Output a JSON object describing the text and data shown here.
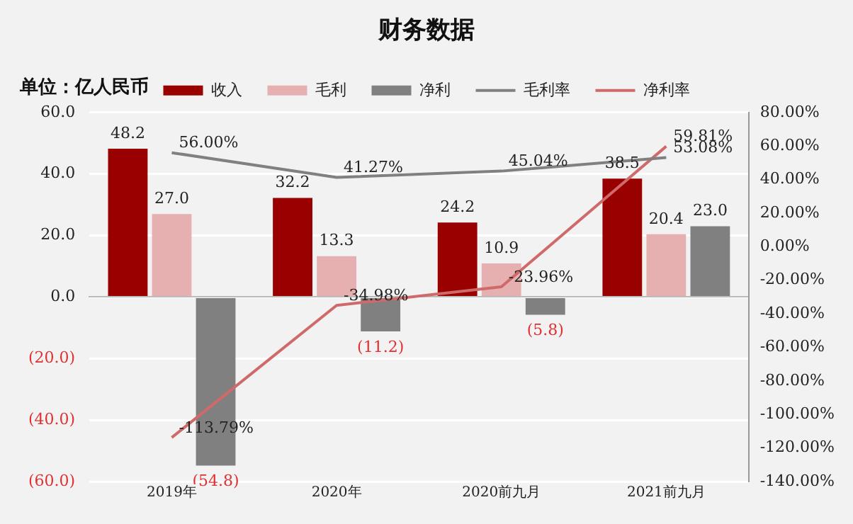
{
  "chart_data": {
    "type": "bar",
    "title": "财务数据",
    "annotations": [
      "单位：亿人民币"
    ],
    "categories": [
      "2019年",
      "2020年",
      "2020前九月",
      "2021前九月"
    ],
    "series": [
      {
        "name": "收入",
        "color": "#990000",
        "values": [
          48.2,
          32.2,
          24.2,
          38.5
        ],
        "value_labels": [
          "48.2",
          "32.2",
          "24.2",
          "38.5"
        ]
      },
      {
        "name": "毛利",
        "color": "#e6b0b0",
        "values": [
          27.0,
          13.3,
          10.9,
          20.4
        ],
        "value_labels": [
          "27.0",
          "13.3",
          "10.9",
          "20.4"
        ]
      },
      {
        "name": "净利",
        "color": "#808080",
        "values": [
          -54.8,
          -11.2,
          -5.8,
          23.0
        ],
        "value_labels": [
          "(54.8)",
          "(11.2)",
          "(5.8)",
          "23.0"
        ]
      },
      {
        "name": "毛利率",
        "type": "line",
        "axis": "y2",
        "color": "#808080",
        "values": [
          56.0,
          41.27,
          45.04,
          53.08
        ],
        "value_labels": [
          "56.00%",
          "41.27%",
          "45.04%",
          "53.08%"
        ]
      },
      {
        "name": "净利率",
        "type": "line",
        "axis": "y2",
        "color": "#d06a6a",
        "values": [
          -113.79,
          -34.98,
          -23.96,
          59.81
        ],
        "value_labels": [
          "-113.79%",
          "-34.98%",
          "-23.96%",
          "59.81%"
        ]
      }
    ],
    "ylim": [
      -60,
      60
    ],
    "yticks": [
      {
        "value": -60,
        "label": "(60.0)"
      },
      {
        "value": -40,
        "label": "(40.0)"
      },
      {
        "value": -20,
        "label": "(20.0)"
      },
      {
        "value": 0,
        "label": "0.0"
      },
      {
        "value": 20,
        "label": "20.0"
      },
      {
        "value": 40,
        "label": "40.0"
      },
      {
        "value": 60,
        "label": "60.0"
      }
    ],
    "y2lim": [
      -140,
      80
    ],
    "y2ticks": [
      {
        "value": -140,
        "label": "-140.00%"
      },
      {
        "value": -120,
        "label": "-120.00%"
      },
      {
        "value": -100,
        "label": "-100.00%"
      },
      {
        "value": -80,
        "label": "-80.00%"
      },
      {
        "value": -60,
        "label": "-60.00%"
      },
      {
        "value": -40,
        "label": "-40.00%"
      },
      {
        "value": -20,
        "label": "-20.00%"
      },
      {
        "value": 0,
        "label": "0.00%"
      },
      {
        "value": 20,
        "label": "20.00%"
      },
      {
        "value": 40,
        "label": "40.00%"
      },
      {
        "value": 60,
        "label": "60.00%"
      },
      {
        "value": 80,
        "label": "80.00%"
      }
    ],
    "grid": "y",
    "legend": "top",
    "marker": "none",
    "line_style": "solid"
  }
}
